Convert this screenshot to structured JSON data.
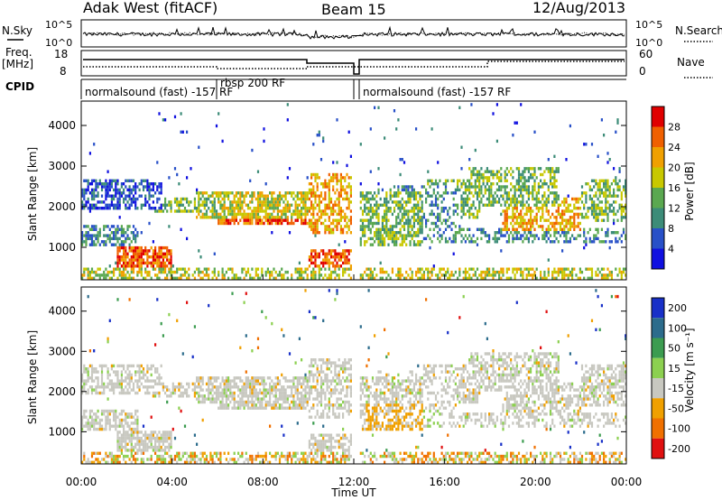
{
  "header": {
    "station": "Adak West (fitACF)",
    "beam": "Beam 15",
    "date": "12/Aug/2013"
  },
  "noise_panel": {
    "left_label": "N.Sky",
    "right_label": "N.Search",
    "left_ticks": [
      "10^5",
      "10^0"
    ],
    "right_ticks": [
      "10^5",
      "10^0"
    ]
  },
  "freq_panel": {
    "left_label_1": "Freq.",
    "left_label_2": "[MHz]",
    "right_label": "Nave",
    "left_ticks": [
      "18",
      "8"
    ],
    "right_ticks": [
      "60",
      "0"
    ]
  },
  "cpid": {
    "label": "CPID",
    "segments": [
      {
        "text": "normalsound (fast) -157 RF"
      },
      {
        "text": "rbsp 200 RF"
      },
      {
        "text": "normalsound (fast) -157 RF"
      }
    ]
  },
  "time_axis": {
    "label": "Time UT",
    "ticks": [
      "00:00",
      "04:00",
      "08:00",
      "12:00",
      "16:00",
      "20:00",
      "00:00"
    ]
  },
  "chart_data": [
    {
      "type": "heatmap",
      "title": "",
      "xlabel": "",
      "ylabel": "Slant Range [km]",
      "ylim": [
        200,
        4600
      ],
      "yticks": [
        "1000",
        "2000",
        "3000",
        "4000"
      ],
      "colorbar_label": "Power [dB]",
      "colorbar_ticks": [
        "4",
        "8",
        "12",
        "16",
        "20",
        "24",
        "28"
      ],
      "colors": [
        "#1010e0",
        "#2850c8",
        "#3c8c78",
        "#5aa850",
        "#c8c800",
        "#f0a000",
        "#f06000",
        "#e00000"
      ]
    },
    {
      "type": "heatmap",
      "title": "",
      "xlabel": "Time UT",
      "ylabel": "Slant Range [km]",
      "ylim": [
        200,
        4600
      ],
      "yticks": [
        "1000",
        "2000",
        "3000",
        "4000"
      ],
      "colorbar_label": "Velocity [m s⁻¹]",
      "colorbar_ticks": [
        "200",
        "100",
        "50",
        "15",
        "-15",
        "-50",
        "-100",
        "-200"
      ],
      "colors": [
        "#1830c8",
        "#2c6c8c",
        "#3c9c50",
        "#8cd050",
        "#c8c8c0",
        "#f0a000",
        "#f07000",
        "#e01010"
      ]
    }
  ]
}
